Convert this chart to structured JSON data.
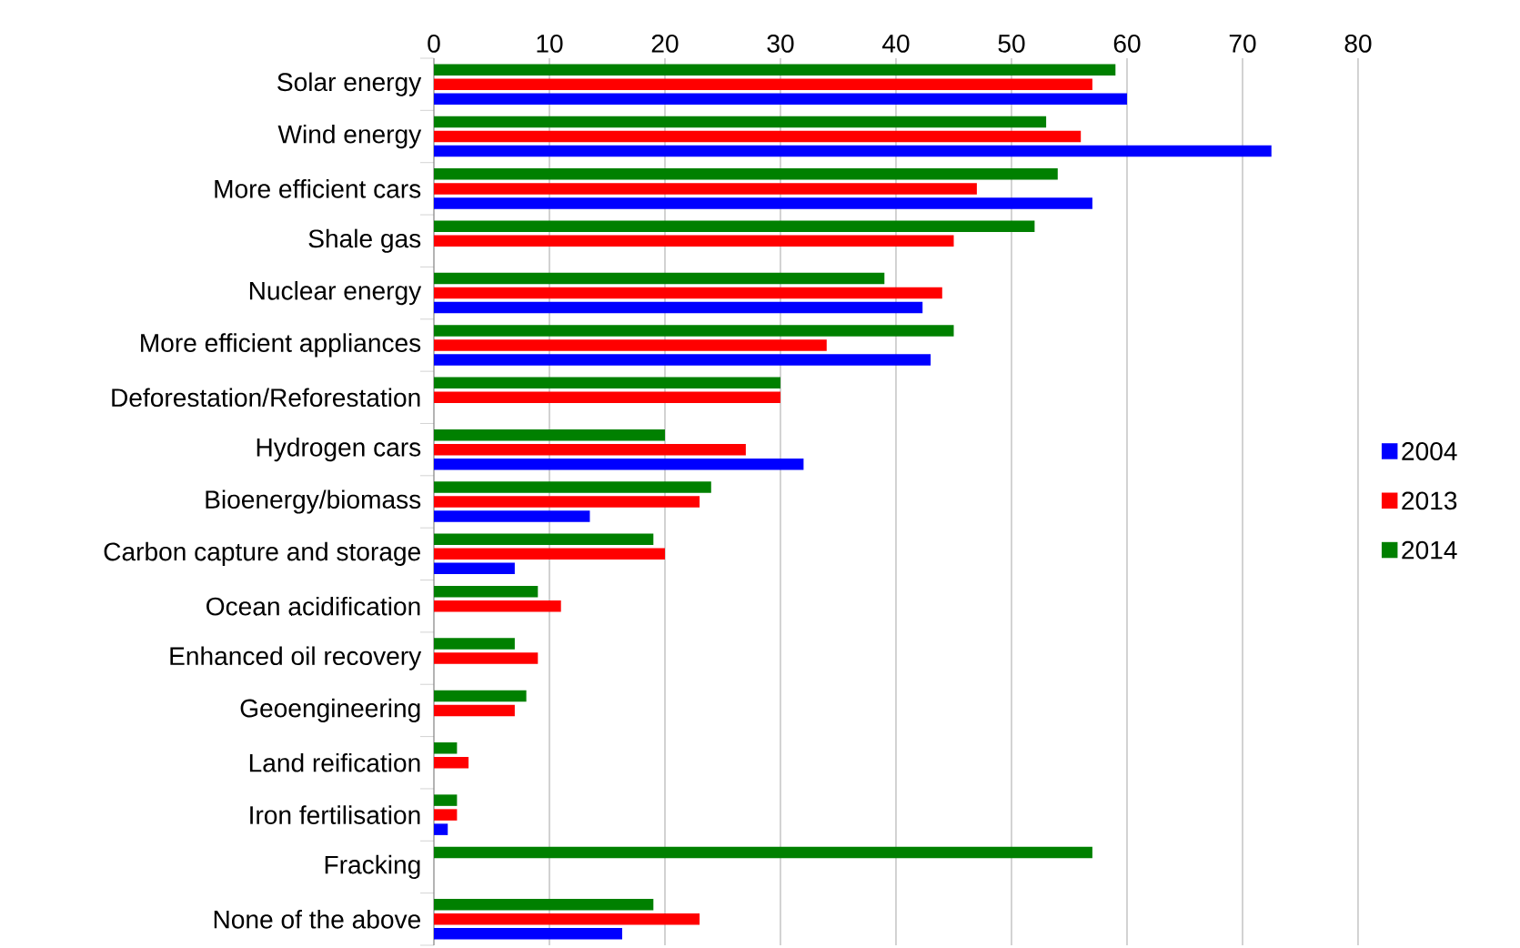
{
  "chart_data": {
    "type": "bar",
    "orientation": "horizontal",
    "categories": [
      "Solar energy",
      "Wind energy",
      "More efficient cars",
      "Shale gas",
      "Nuclear energy",
      "More efficient appliances",
      "Deforestation/Reforestation",
      "Hydrogen cars",
      "Bioenergy/biomass",
      "Carbon capture and storage",
      "Ocean acidification",
      "Enhanced oil recovery",
      "Geoengineering",
      "Land reification",
      "Iron fertilisation",
      "Fracking",
      "None of the above"
    ],
    "series": [
      {
        "name": "2004",
        "color": "#0000ff",
        "values": [
          60,
          72.5,
          57,
          null,
          42.3,
          43,
          null,
          32,
          13.5,
          7,
          null,
          null,
          null,
          null,
          1.2,
          null,
          16.3
        ]
      },
      {
        "name": "2013",
        "color": "#ff0000",
        "values": [
          57,
          56,
          47,
          45,
          44,
          34,
          30,
          27,
          23,
          20,
          11,
          9,
          7,
          3,
          2,
          null,
          23
        ]
      },
      {
        "name": "2014",
        "color": "#008000",
        "values": [
          59,
          53,
          54,
          52,
          39,
          45,
          30,
          20,
          24,
          19,
          9,
          7,
          8,
          2,
          2,
          57,
          19
        ]
      }
    ],
    "xlim": [
      0,
      80
    ],
    "xticks": [
      0,
      10,
      20,
      30,
      40,
      50,
      60,
      70,
      80
    ],
    "grid": "x",
    "legend": "right"
  }
}
